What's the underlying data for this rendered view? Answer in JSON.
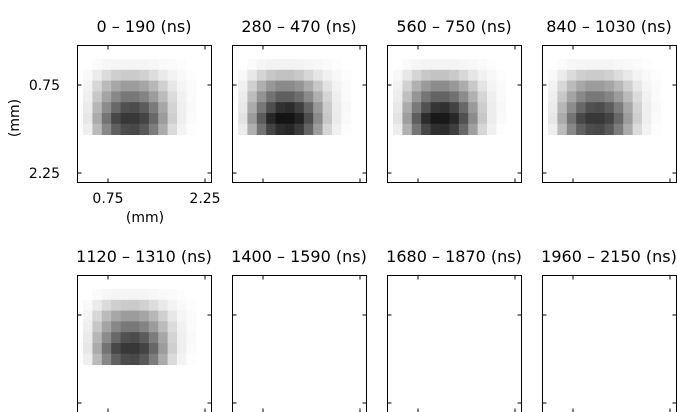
{
  "chart_data": {
    "type": "heatmap",
    "xlabel": "(mm)",
    "ylabel": "(mm)",
    "x_tick_labels": [
      "0.75",
      "2.25"
    ],
    "y_tick_labels": [
      "0.75",
      "2.25"
    ],
    "panels": [
      {
        "title": "0 – 190 (ns)",
        "intensity": 0.78
      },
      {
        "title": "280 – 470 (ns)",
        "intensity": 0.92
      },
      {
        "title": "560 – 750 (ns)",
        "intensity": 0.9
      },
      {
        "title": "840 – 1030 (ns)",
        "intensity": 0.78
      },
      {
        "title": "1120 – 1310 (ns)",
        "intensity": 0.78
      },
      {
        "title": "1400 – 1590 (ns)",
        "intensity": 0
      },
      {
        "title": "1680 – 1870 (ns)",
        "intensity": 0
      },
      {
        "title": "1960 – 2150 (ns)",
        "intensity": 0
      }
    ],
    "profile": [
      [
        0,
        0.02,
        0.04,
        0.05,
        0.05,
        0.05,
        0.05,
        0.04,
        0.03,
        0.02,
        0.01,
        0
      ],
      [
        0.03,
        0.1,
        0.18,
        0.24,
        0.26,
        0.26,
        0.23,
        0.17,
        0.11,
        0.06,
        0.03,
        0.01
      ],
      [
        0.06,
        0.2,
        0.34,
        0.44,
        0.5,
        0.5,
        0.45,
        0.36,
        0.24,
        0.12,
        0.05,
        0.02
      ],
      [
        0.08,
        0.28,
        0.46,
        0.6,
        0.68,
        0.68,
        0.62,
        0.5,
        0.34,
        0.18,
        0.07,
        0.02
      ],
      [
        0.1,
        0.36,
        0.58,
        0.76,
        0.88,
        0.9,
        0.82,
        0.66,
        0.44,
        0.22,
        0.08,
        0.03
      ],
      [
        0.12,
        0.42,
        0.7,
        0.92,
        1.0,
        1.0,
        0.94,
        0.76,
        0.5,
        0.24,
        0.08,
        0.02
      ],
      [
        0.08,
        0.34,
        0.6,
        0.8,
        0.9,
        0.92,
        0.84,
        0.66,
        0.42,
        0.18,
        0.06,
        0.01
      ]
    ]
  }
}
